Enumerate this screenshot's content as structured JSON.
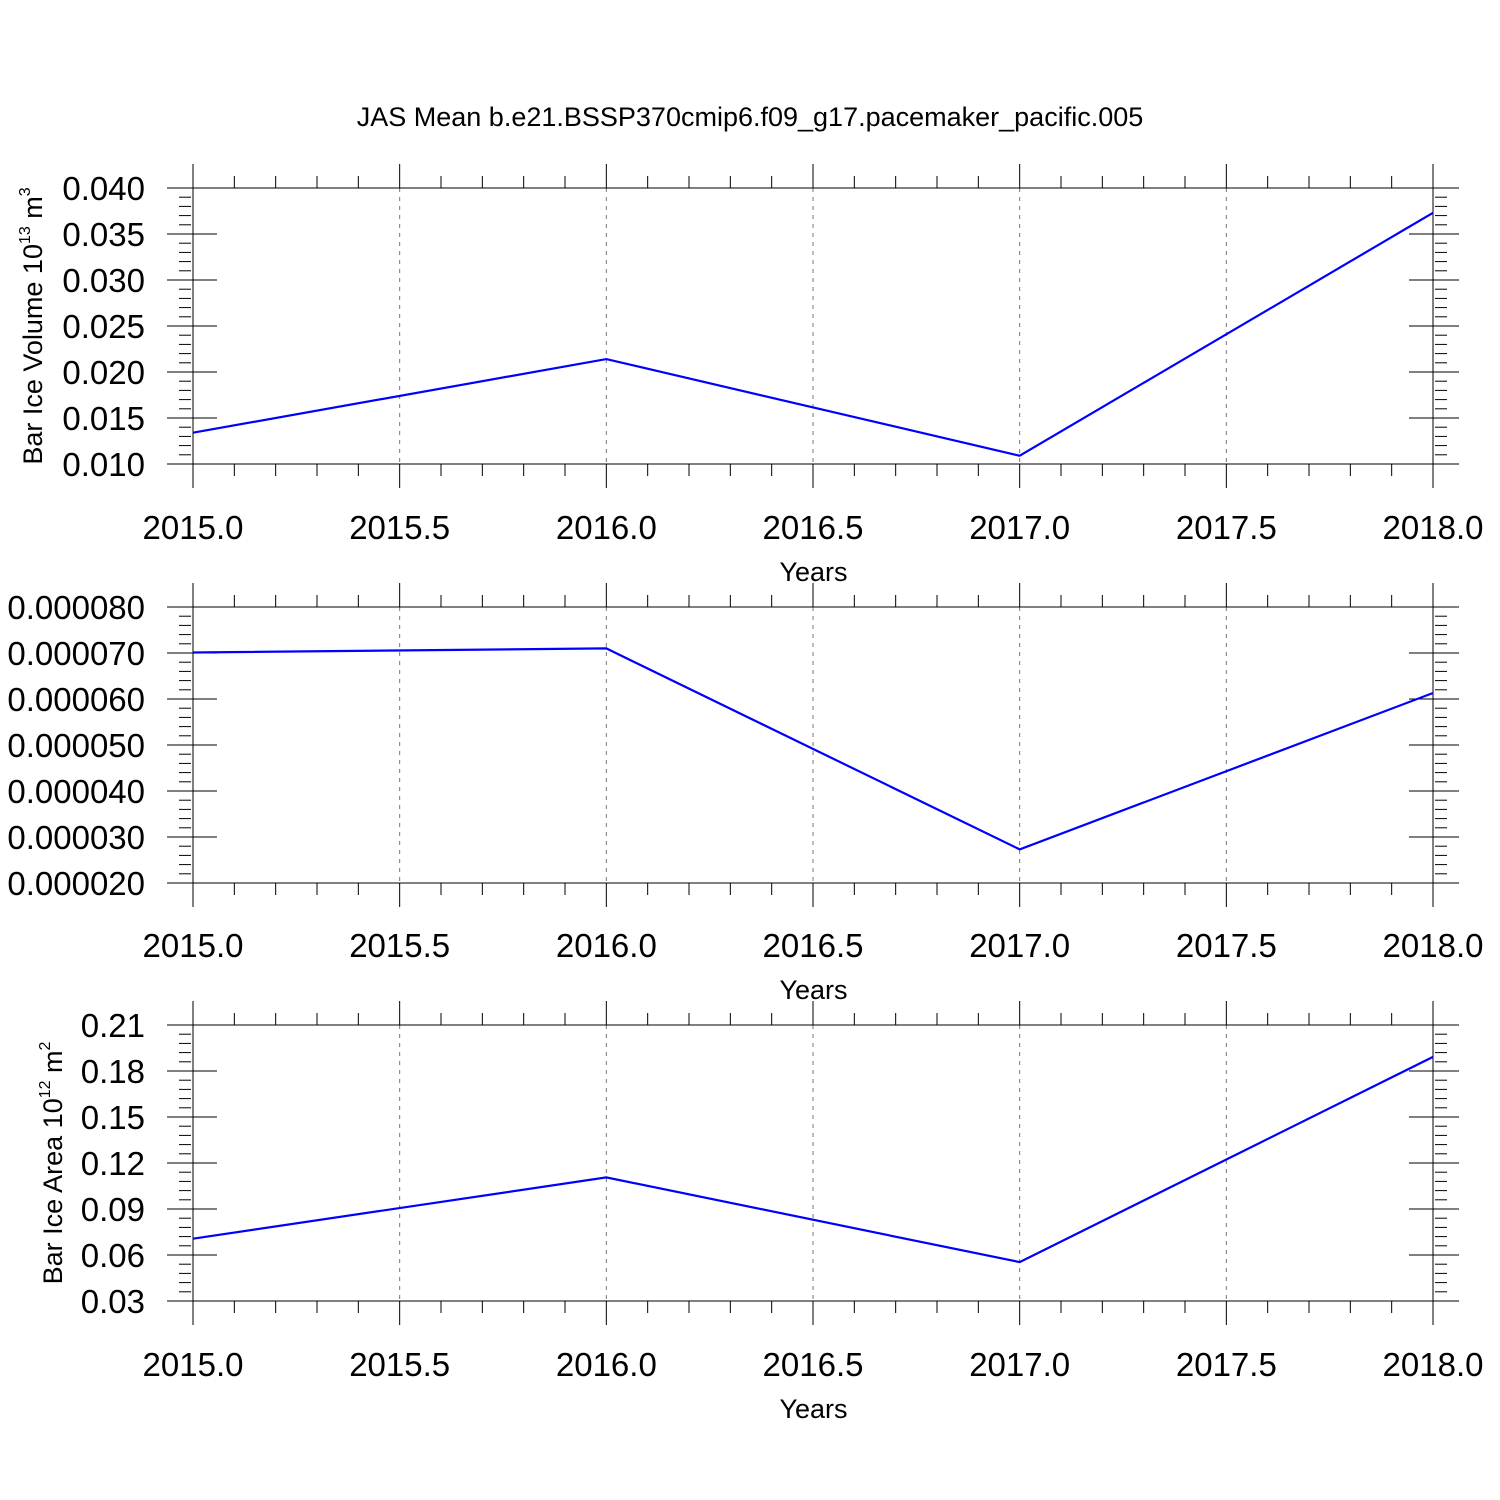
{
  "title": "JAS Mean b.e21.BSSP370cmip6.f09_g17.pacemaker_pacific.005",
  "line_color": "#0000ff",
  "chart_data": [
    {
      "type": "line",
      "ylabel": "Bar Ice Volume 10",
      "ylabel_exp": "13",
      "ylabel_unit": " m",
      "ylabel_unit_exp": "3",
      "xlabel": "Years",
      "xlim": [
        2015.0,
        2018.0
      ],
      "ylim": [
        0.01,
        0.04
      ],
      "x_ticks": [
        "2015.0",
        "2015.5",
        "2016.0",
        "2016.5",
        "2017.0",
        "2017.5",
        "2018.0"
      ],
      "y_ticks": [
        "0.010",
        "0.015",
        "0.020",
        "0.025",
        "0.030",
        "0.035",
        "0.040"
      ],
      "x": [
        2015,
        2016,
        2017,
        2018
      ],
      "y": [
        0.0134,
        0.0214,
        0.0109,
        0.0373
      ],
      "grid": "vertical dashed"
    },
    {
      "type": "line",
      "ylabel": "",
      "xlabel": "Years",
      "xlim": [
        2015.0,
        2018.0
      ],
      "ylim": [
        2e-05,
        8e-05
      ],
      "x_ticks": [
        "2015.0",
        "2015.5",
        "2016.0",
        "2016.5",
        "2017.0",
        "2017.5",
        "2018.0"
      ],
      "y_ticks": [
        "0.000020",
        "0.000030",
        "0.000040",
        "0.000050",
        "0.000060",
        "0.000070",
        "0.000080"
      ],
      "x": [
        2015,
        2016,
        2017,
        2018
      ],
      "y": [
        7.01e-05,
        7.1e-05,
        2.73e-05,
        6.13e-05
      ],
      "grid": "vertical dashed"
    },
    {
      "type": "line",
      "ylabel": "Bar Ice Area 10",
      "ylabel_exp": "12",
      "ylabel_unit": " m",
      "ylabel_unit_exp": "2",
      "xlabel": "Years",
      "xlim": [
        2015.0,
        2018.0
      ],
      "ylim": [
        0.03,
        0.21
      ],
      "x_ticks": [
        "2015.0",
        "2015.5",
        "2016.0",
        "2016.5",
        "2017.0",
        "2017.5",
        "2018.0"
      ],
      "y_ticks": [
        "0.03",
        "0.06",
        "0.09",
        "0.12",
        "0.15",
        "0.18",
        "0.21"
      ],
      "x": [
        2015,
        2016,
        2017,
        2018
      ],
      "y": [
        0.0706,
        0.1106,
        0.0554,
        0.1892
      ],
      "grid": "vertical dashed"
    }
  ]
}
